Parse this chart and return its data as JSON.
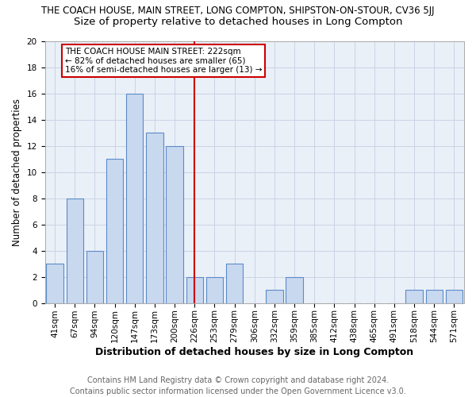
{
  "title": "THE COACH HOUSE, MAIN STREET, LONG COMPTON, SHIPSTON-ON-STOUR, CV36 5JJ",
  "subtitle": "Size of property relative to detached houses in Long Compton",
  "xlabel": "Distribution of detached houses by size in Long Compton",
  "ylabel": "Number of detached properties",
  "categories": [
    "41sqm",
    "67sqm",
    "94sqm",
    "120sqm",
    "147sqm",
    "173sqm",
    "200sqm",
    "226sqm",
    "253sqm",
    "279sqm",
    "306sqm",
    "332sqm",
    "359sqm",
    "385sqm",
    "412sqm",
    "438sqm",
    "465sqm",
    "491sqm",
    "518sqm",
    "544sqm",
    "571sqm"
  ],
  "values": [
    3,
    8,
    4,
    11,
    16,
    13,
    12,
    2,
    2,
    3,
    0,
    1,
    2,
    0,
    0,
    0,
    0,
    0,
    1,
    1,
    1
  ],
  "bar_color": "#c8d8ee",
  "bar_edge_color": "#5b8bc9",
  "vline_x_index": 7,
  "vline_color": "#cc0000",
  "annotation_text": "THE COACH HOUSE MAIN STREET: 222sqm\n← 82% of detached houses are smaller (65)\n16% of semi-detached houses are larger (13) →",
  "annotation_box_color": "#ffffff",
  "annotation_box_edge": "#cc0000",
  "ylim": [
    0,
    20
  ],
  "yticks": [
    0,
    2,
    4,
    6,
    8,
    10,
    12,
    14,
    16,
    18,
    20
  ],
  "footer": "Contains HM Land Registry data © Crown copyright and database right 2024.\nContains public sector information licensed under the Open Government Licence v3.0.",
  "bg_color": "#ffffff",
  "plot_bg_color": "#eaf0f8",
  "grid_color": "#c8d4e4",
  "title_fontsize": 8.5,
  "subtitle_fontsize": 9.5,
  "xlabel_fontsize": 9,
  "ylabel_fontsize": 8.5,
  "tick_fontsize": 7.5,
  "annot_fontsize": 7.5,
  "footer_fontsize": 7.0
}
